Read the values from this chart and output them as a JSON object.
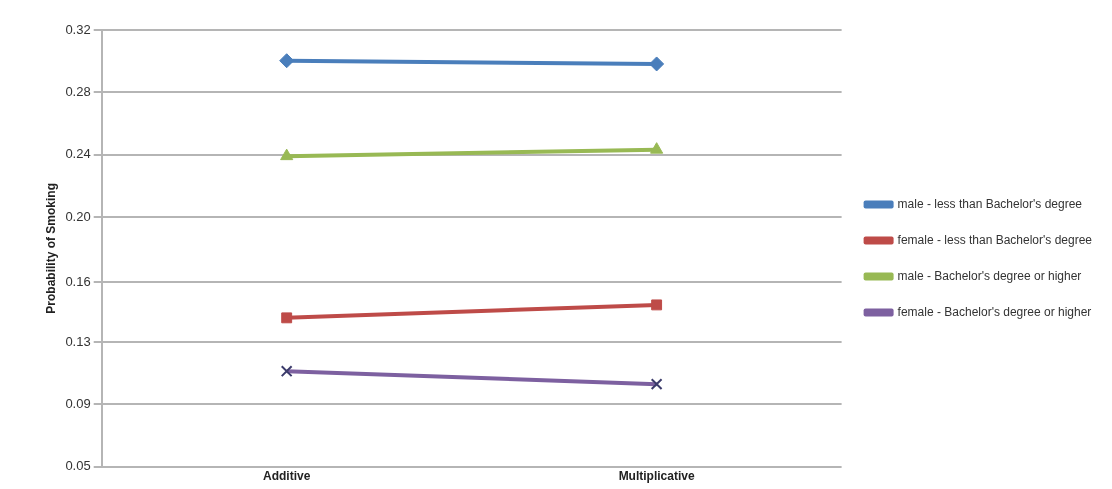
{
  "chart_data": {
    "type": "line",
    "ylabel": "Probability of Smoking",
    "categories": [
      "Additive",
      "Multiplicative"
    ],
    "series": [
      {
        "name": "male - less than Bachelor's degree",
        "color": "#4a7ebb",
        "marker": "diamond",
        "values": [
          0.301,
          0.299
        ]
      },
      {
        "name": "female - less than Bachelor's degree",
        "color": "#be4b48",
        "marker": "square",
        "values": [
          0.142,
          0.15
        ]
      },
      {
        "name": "male - Bachelor's degree or higher",
        "color": "#98b954",
        "marker": "triangle",
        "values": [
          0.242,
          0.246
        ]
      },
      {
        "name": "female - Bachelor's degree or higher",
        "color": "#7d60a0",
        "marker": "cross",
        "values": [
          0.109,
          0.101
        ]
      }
    ],
    "ylim": [
      0.05,
      0.32
    ],
    "yticks": [
      0.05,
      {
        "value": 0.0886,
        "label": "0.09"
      },
      {
        "value": 0.1271,
        "label": "0.13"
      },
      {
        "value": 0.164,
        "label": "0.16"
      },
      {
        "value": 0.2043,
        "label": "0.20"
      },
      {
        "value": 0.2429,
        "label": "0.24"
      },
      {
        "value": 0.2814,
        "label": "0.28"
      },
      0.32
    ],
    "grid": "y",
    "legend": "right",
    "line_style": "solid"
  }
}
